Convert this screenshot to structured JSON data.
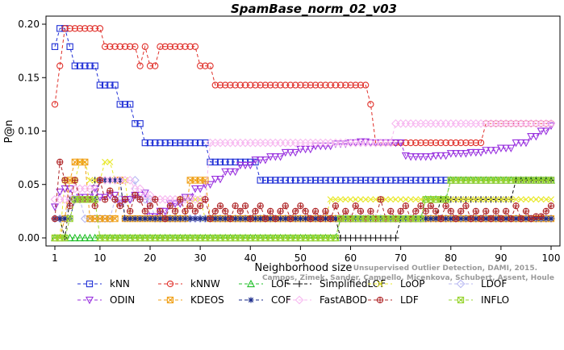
{
  "chart_data": {
    "type": "line",
    "title": "SpamBase_norm_02_v03",
    "xlabel": "Neighborhood size",
    "ylabel": "P@n",
    "xlim": [
      1,
      100
    ],
    "ylim": [
      0,
      0.2
    ],
    "xticks": [
      1,
      10,
      20,
      30,
      40,
      50,
      60,
      70,
      80,
      90,
      100
    ],
    "yticks": [
      "0.00",
      "0.05",
      "0.10",
      "0.15",
      "0.20"
    ],
    "grid": false,
    "legend_position": "bottom",
    "watermark": [
      "Unsupervised Outlier Detection, DAMI, 2015.",
      "Campos, Zimek, Sander, Campello, Micenkova, Schubert, Assent, Houle"
    ],
    "series": [
      {
        "name": "kNN",
        "color": "#1f2fd6",
        "marker": "square",
        "points": [
          [
            1,
            0.179
          ],
          [
            2,
            0.196
          ],
          [
            3,
            0.196
          ],
          [
            4,
            0.179
          ],
          [
            5,
            0.161
          ],
          [
            8,
            0.161
          ],
          [
            9,
            0.161
          ],
          [
            10,
            0.143
          ],
          [
            13,
            0.143
          ],
          [
            14,
            0.125
          ],
          [
            16,
            0.125
          ],
          [
            17,
            0.107
          ],
          [
            18,
            0.107
          ],
          [
            19,
            0.089
          ],
          [
            30,
            0.089
          ],
          [
            31,
            0.089
          ],
          [
            32,
            0.071
          ],
          [
            40,
            0.071
          ],
          [
            41,
            0.071
          ],
          [
            42,
            0.054
          ],
          [
            100,
            0.054
          ]
        ]
      },
      {
        "name": "kNNW",
        "color": "#e0302a",
        "marker": "circle",
        "points": [
          [
            1,
            0.125
          ],
          [
            2,
            0.161
          ],
          [
            3,
            0.196
          ],
          [
            10,
            0.196
          ],
          [
            11,
            0.179
          ],
          [
            17,
            0.179
          ],
          [
            18,
            0.161
          ],
          [
            19,
            0.179
          ],
          [
            20,
            0.161
          ],
          [
            21,
            0.161
          ],
          [
            22,
            0.179
          ],
          [
            29,
            0.179
          ],
          [
            30,
            0.161
          ],
          [
            32,
            0.161
          ],
          [
            33,
            0.143
          ],
          [
            63,
            0.143
          ],
          [
            64,
            0.125
          ],
          [
            65,
            0.089
          ],
          [
            67,
            0.089
          ],
          [
            68,
            0.089
          ],
          [
            86,
            0.089
          ],
          [
            87,
            0.107
          ],
          [
            100,
            0.107
          ]
        ]
      },
      {
        "name": "LOF",
        "color": "#22c02a",
        "marker": "triangle-up",
        "points": [
          [
            1,
            0
          ],
          [
            57,
            0
          ],
          [
            58,
            0.018
          ],
          [
            74,
            0.018
          ],
          [
            75,
            0.036
          ],
          [
            79,
            0.036
          ],
          [
            80,
            0.054
          ],
          [
            100,
            0.054
          ]
        ]
      },
      {
        "name": "SimplifiedLOF",
        "color": "#111111",
        "marker": "plus",
        "points": [
          [
            1,
            0.018
          ],
          [
            2,
            0.018
          ],
          [
            3,
            0
          ],
          [
            4,
            0.036
          ],
          [
            8,
            0.036
          ],
          [
            9,
            0.054
          ],
          [
            14,
            0.054
          ],
          [
            15,
            0.018
          ],
          [
            57,
            0.018
          ],
          [
            58,
            0
          ],
          [
            69,
            0
          ],
          [
            70,
            0.018
          ],
          [
            77,
            0.018
          ],
          [
            78,
            0.036
          ],
          [
            92,
            0.036
          ],
          [
            93,
            0.054
          ],
          [
            100,
            0.054
          ]
        ]
      },
      {
        "name": "LoOP",
        "color": "#e8e82a",
        "marker": "x",
        "points": [
          [
            1,
            0
          ],
          [
            3,
            0.054
          ],
          [
            5,
            0.054
          ],
          [
            6,
            0.071
          ],
          [
            8,
            0.054
          ],
          [
            11,
            0.071
          ],
          [
            12,
            0.071
          ],
          [
            13,
            0.054
          ],
          [
            15,
            0.054
          ],
          [
            16,
            0.018
          ],
          [
            20,
            0.018
          ],
          [
            25,
            0.018
          ],
          [
            26,
            0.036
          ],
          [
            30,
            0.036
          ],
          [
            31,
            0.018
          ],
          [
            55,
            0.018
          ],
          [
            56,
            0.036
          ],
          [
            100,
            0.036
          ]
        ]
      },
      {
        "name": "LDOF",
        "color": "#b8b8f2",
        "marker": "diamond",
        "points": [
          [
            1,
            0.018
          ],
          [
            3,
            0.018
          ],
          [
            4,
            0.036
          ],
          [
            6,
            0.036
          ],
          [
            7,
            0.018
          ],
          [
            12,
            0.018
          ],
          [
            13,
            0.036
          ],
          [
            16,
            0.036
          ],
          [
            17,
            0.054
          ],
          [
            18,
            0.036
          ],
          [
            20,
            0.036
          ],
          [
            21,
            0.018
          ],
          [
            100,
            0.018
          ]
        ]
      },
      {
        "name": "ODIN",
        "color": "#9a33df",
        "marker": "triangle-down",
        "points": [
          [
            1,
            0.029
          ],
          [
            2,
            0.043
          ],
          [
            3,
            0.046
          ],
          [
            5,
            0.036
          ],
          [
            6,
            0.038
          ],
          [
            9,
            0.046
          ],
          [
            10,
            0.038
          ],
          [
            12,
            0.04
          ],
          [
            14,
            0.032
          ],
          [
            15,
            0.036
          ],
          [
            17,
            0.04
          ],
          [
            19,
            0.042
          ],
          [
            20,
            0.02
          ],
          [
            22,
            0.025
          ],
          [
            24,
            0.032
          ],
          [
            27,
            0.038
          ],
          [
            29,
            0.046
          ],
          [
            31,
            0.05
          ],
          [
            33,
            0.055
          ],
          [
            35,
            0.062
          ],
          [
            38,
            0.068
          ],
          [
            41,
            0.073
          ],
          [
            44,
            0.076
          ],
          [
            47,
            0.08
          ],
          [
            50,
            0.083
          ],
          [
            53,
            0.086
          ],
          [
            57,
            0.088
          ],
          [
            60,
            0.089
          ],
          [
            62,
            0.09
          ],
          [
            64,
            0.089
          ],
          [
            66,
            0.089
          ],
          [
            68,
            0.089
          ],
          [
            70,
            0.089
          ],
          [
            71,
            0.077
          ],
          [
            72,
            0.076
          ],
          [
            77,
            0.077
          ],
          [
            80,
            0.079
          ],
          [
            84,
            0.08
          ],
          [
            87,
            0.082
          ],
          [
            90,
            0.084
          ],
          [
            93,
            0.089
          ],
          [
            96,
            0.095
          ],
          [
            98,
            0.1
          ],
          [
            100,
            0.105
          ]
        ]
      },
      {
        "name": "KDEOS",
        "color": "#f0a018",
        "marker": "square-x",
        "points": [
          [
            1,
            0
          ],
          [
            3,
            0.018
          ],
          [
            4,
            0.054
          ],
          [
            5,
            0.071
          ],
          [
            7,
            0.071
          ],
          [
            8,
            0.018
          ],
          [
            10,
            0.018
          ],
          [
            13,
            0.018
          ],
          [
            14,
            0.054
          ],
          [
            15,
            0.018
          ],
          [
            27,
            0.018
          ],
          [
            28,
            0.054
          ],
          [
            31,
            0.054
          ],
          [
            32,
            0.018
          ],
          [
            100,
            0.018
          ]
        ]
      },
      {
        "name": "COF",
        "color": "#1a2a8a",
        "marker": "asterisk",
        "points": [
          [
            1,
            0.018
          ],
          [
            4,
            0.018
          ],
          [
            5,
            0.036
          ],
          [
            9,
            0.036
          ],
          [
            10,
            0.054
          ],
          [
            14,
            0.054
          ],
          [
            15,
            0.018
          ],
          [
            100,
            0.018
          ]
        ]
      },
      {
        "name": "FastABOD",
        "color": "#f7b8f0",
        "marker": "diamond",
        "points": [
          [
            1,
            0.036
          ],
          [
            4,
            0.036
          ],
          [
            5,
            0.046
          ],
          [
            9,
            0.046
          ],
          [
            10,
            0.054
          ],
          [
            16,
            0.054
          ],
          [
            17,
            0.046
          ],
          [
            19,
            0.04
          ],
          [
            21,
            0.036
          ],
          [
            31,
            0.036
          ],
          [
            32,
            0.089
          ],
          [
            68,
            0.089
          ],
          [
            69,
            0.107
          ],
          [
            100,
            0.107
          ]
        ]
      },
      {
        "name": "LDF",
        "color": "#b0282a",
        "marker": "circle-plus",
        "points": [
          [
            1,
            0.018
          ],
          [
            2,
            0.071
          ],
          [
            3,
            0.054
          ],
          [
            4,
            0.03
          ],
          [
            5,
            0.054
          ],
          [
            6,
            0.036
          ],
          [
            7,
            0.036
          ],
          [
            8,
            0.036
          ],
          [
            9,
            0.03
          ],
          [
            10,
            0.054
          ],
          [
            11,
            0.036
          ],
          [
            12,
            0.044
          ],
          [
            13,
            0.036
          ],
          [
            14,
            0.03
          ],
          [
            15,
            0.036
          ],
          [
            16,
            0.025
          ],
          [
            17,
            0.04
          ],
          [
            18,
            0.036
          ],
          [
            19,
            0.025
          ],
          [
            20,
            0.03
          ],
          [
            21,
            0.036
          ],
          [
            22,
            0.025
          ],
          [
            23,
            0.018
          ],
          [
            24,
            0.03
          ],
          [
            25,
            0.025
          ],
          [
            26,
            0.036
          ],
          [
            27,
            0.025
          ],
          [
            28,
            0.03
          ],
          [
            29,
            0.025
          ],
          [
            30,
            0.03
          ],
          [
            31,
            0.036
          ],
          [
            32,
            0.018
          ],
          [
            33,
            0.025
          ],
          [
            34,
            0.03
          ],
          [
            35,
            0.025
          ],
          [
            36,
            0.018
          ],
          [
            37,
            0.03
          ],
          [
            38,
            0.025
          ],
          [
            39,
            0.03
          ],
          [
            40,
            0.018
          ],
          [
            41,
            0.025
          ],
          [
            42,
            0.03
          ],
          [
            43,
            0.018
          ],
          [
            44,
            0.025
          ],
          [
            45,
            0.018
          ],
          [
            46,
            0.025
          ],
          [
            47,
            0.03
          ],
          [
            48,
            0.018
          ],
          [
            49,
            0.025
          ],
          [
            50,
            0.03
          ],
          [
            51,
            0.025
          ],
          [
            52,
            0.018
          ],
          [
            53,
            0.025
          ],
          [
            54,
            0.018
          ],
          [
            55,
            0.025
          ],
          [
            56,
            0.018
          ],
          [
            57,
            0.03
          ],
          [
            58,
            0.018
          ],
          [
            59,
            0.025
          ],
          [
            60,
            0.018
          ],
          [
            61,
            0.03
          ],
          [
            62,
            0.025
          ],
          [
            63,
            0.018
          ],
          [
            64,
            0.025
          ],
          [
            65,
            0.018
          ],
          [
            66,
            0.036
          ],
          [
            67,
            0.018
          ],
          [
            68,
            0.025
          ],
          [
            69,
            0.018
          ],
          [
            70,
            0.025
          ],
          [
            71,
            0.03
          ],
          [
            72,
            0.018
          ],
          [
            73,
            0.025
          ],
          [
            74,
            0.03
          ],
          [
            75,
            0.025
          ],
          [
            76,
            0.03
          ],
          [
            77,
            0.025
          ],
          [
            78,
            0.018
          ],
          [
            79,
            0.03
          ],
          [
            80,
            0.025
          ],
          [
            81,
            0.018
          ],
          [
            82,
            0.025
          ],
          [
            83,
            0.03
          ],
          [
            84,
            0.018
          ],
          [
            85,
            0.025
          ],
          [
            86,
            0.018
          ],
          [
            87,
            0.025
          ],
          [
            88,
            0.018
          ],
          [
            89,
            0.025
          ],
          [
            90,
            0.018
          ],
          [
            91,
            0.025
          ],
          [
            92,
            0.018
          ],
          [
            93,
            0.03
          ],
          [
            94,
            0.018
          ],
          [
            95,
            0.025
          ],
          [
            96,
            0.018
          ],
          [
            97,
            0.02
          ],
          [
            98,
            0.02
          ],
          [
            99,
            0.025
          ],
          [
            100,
            0.03
          ]
        ]
      },
      {
        "name": "INFLO",
        "color": "#98d430",
        "marker": "square-x",
        "points": [
          [
            1,
            0
          ],
          [
            3,
            0
          ],
          [
            4,
            0.018
          ],
          [
            5,
            0.036
          ],
          [
            9,
            0.036
          ],
          [
            10,
            0
          ],
          [
            57,
            0
          ],
          [
            58,
            0.018
          ],
          [
            74,
            0.018
          ],
          [
            75,
            0.036
          ],
          [
            79,
            0.036
          ],
          [
            80,
            0.054
          ],
          [
            100,
            0.054
          ]
        ]
      }
    ]
  }
}
